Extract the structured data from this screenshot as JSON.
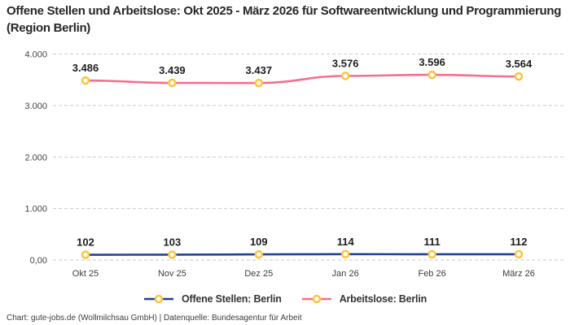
{
  "header": {
    "title": "Offene Stellen und Arbeitslose: Okt 2025 - März 2026 für Softwareentwicklung und Programmierung (Region Berlin)"
  },
  "chart_data": {
    "type": "line",
    "categories": [
      "Okt 25",
      "Nov 25",
      "Dez 25",
      "Jan 26",
      "Feb 26",
      "März 26"
    ],
    "series": [
      {
        "name": "Offene Stellen: Berlin",
        "color": "#21409a",
        "values": [
          102,
          103,
          109,
          114,
          111,
          112
        ],
        "labels": [
          "102",
          "103",
          "109",
          "114",
          "111",
          "112"
        ]
      },
      {
        "name": "Arbeitslose: Berlin",
        "color": "#f76d8e",
        "values": [
          3486,
          3439,
          3437,
          3576,
          3596,
          3564
        ],
        "labels": [
          "3.486",
          "3.439",
          "3.437",
          "3.576",
          "3.596",
          "3.564"
        ]
      }
    ],
    "marker": {
      "fill": "#ffffff",
      "stroke": "#fdc33c"
    },
    "y_ticks": [
      {
        "value": 0,
        "label": "0,00"
      },
      {
        "value": 1000,
        "label": "1.000"
      },
      {
        "value": 2000,
        "label": "2.000"
      },
      {
        "value": 3000,
        "label": "3.000"
      },
      {
        "value": 4000,
        "label": "4.000"
      }
    ],
    "ylim": [
      0,
      4000
    ],
    "grid": "horizontal-dashed",
    "legend_position": "bottom"
  },
  "colors": {
    "grid": "#c9c9c9",
    "axis_text": "#454545",
    "data_label": "#1d1d1d",
    "title": "#262626",
    "footer": "#3b3b3b"
  },
  "footer": {
    "text": "Chart: gute-jobs.de (Wollmilchsau GmbH) | Datenquelle: Bundesagentur für Arbeit"
  }
}
